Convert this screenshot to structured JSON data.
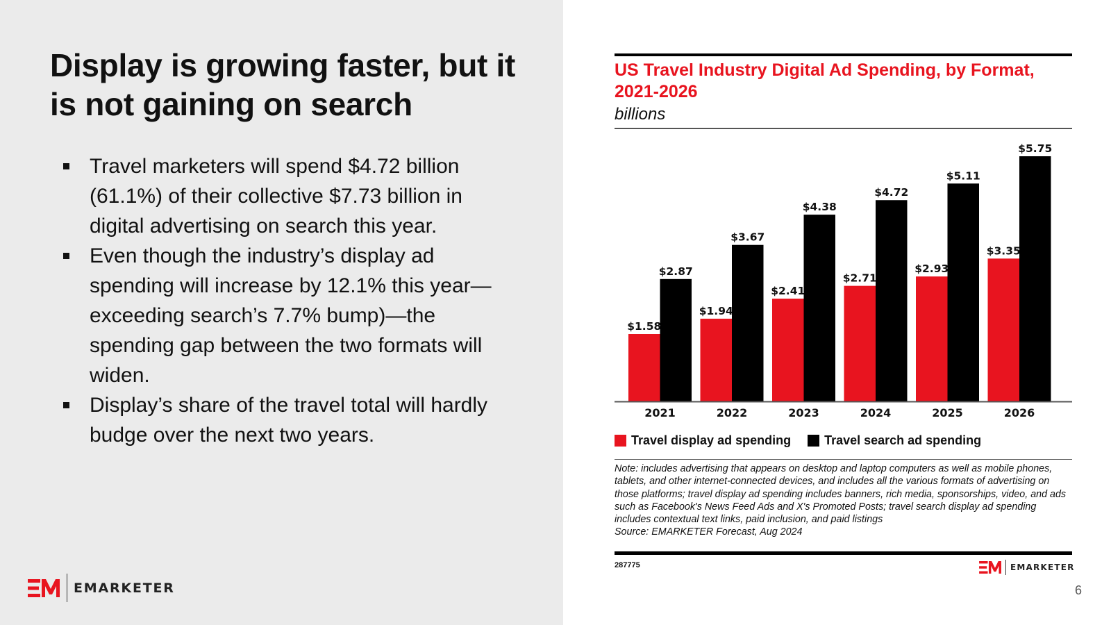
{
  "slide": {
    "headline": "Display is growing faster, but it is not gaining on search",
    "bullets": [
      "Travel marketers will spend $4.72 billion (61.1%) of their collective $7.73 billion in digital advertising on search this year.",
      "Even though the industry’s display ad spending will increase by 12.1% this year—exceeding search’s 7.7% bump)—the spending gap between the two formats will widen.",
      "Display’s share of the travel total will hardly budge over the next two years."
    ],
    "page_number": "6",
    "logo_text": "EMARKETER",
    "brand_color": "#e8141f"
  },
  "chart_data": {
    "type": "bar",
    "title": "US Travel Industry Digital Ad Spending, by Format, 2021-2026",
    "subtitle": "billions",
    "xlabel": "",
    "ylabel": "",
    "categories": [
      "2021",
      "2022",
      "2023",
      "2024",
      "2025",
      "2026"
    ],
    "series": [
      {
        "name": "Travel display ad spending",
        "color": "#e8141f",
        "values": [
          1.58,
          1.94,
          2.41,
          2.71,
          2.93,
          3.35
        ],
        "labels": [
          "$1.58",
          "$1.94",
          "$2.41",
          "$2.71",
          "$2.93",
          "$3.35"
        ]
      },
      {
        "name": "Travel search ad spending",
        "color": "#000000",
        "values": [
          2.87,
          3.67,
          4.38,
          4.72,
          5.11,
          5.75
        ],
        "labels": [
          "$2.87",
          "$3.67",
          "$4.38",
          "$4.72",
          "$5.11",
          "$5.75"
        ]
      }
    ],
    "ylim": [
      0,
      5.75
    ],
    "grid": false,
    "legend_position": "bottom-left",
    "note": "Note: includes advertising that appears on desktop and laptop computers as well as mobile phones, tablets, and other internet-connected devices, and includes all the various formats of advertising on those platforms; travel display ad spending includes banners, rich media, sponsorships, video, and ads such as Facebook's News Feed Ads and X's Promoted Posts; travel search display ad spending includes contextual text links, paid inclusion, and paid listings",
    "source": "Source: EMARKETER Forecast, Aug 2024",
    "chart_id": "287775"
  }
}
